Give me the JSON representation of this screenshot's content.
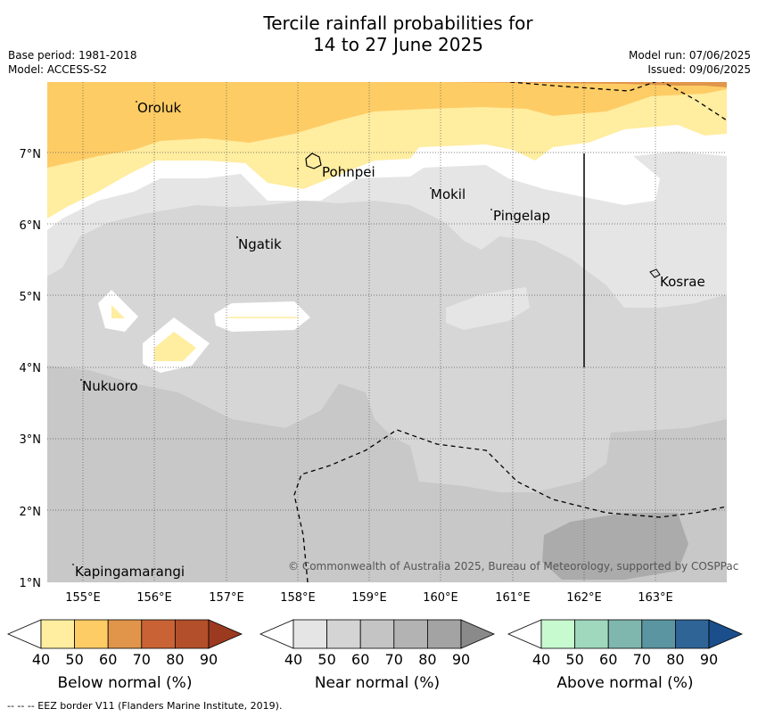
{
  "title_line1": "Tercile rainfall probabilities for",
  "title_line2": "14 to 27 June 2025",
  "meta_left": [
    "Base period: 1981-2018",
    "Model: ACCESS-S2"
  ],
  "meta_right": [
    "Model run: 07/06/2025",
    "Issued: 09/06/2025"
  ],
  "lat_labels": [
    "1°N",
    "2°N",
    "3°N",
    "4°N",
    "5°N",
    "6°N",
    "7°N"
  ],
  "lon_labels": [
    "155°E",
    "156°E",
    "157°E",
    "158°E",
    "159°E",
    "160°E",
    "161°E",
    "162°E",
    "163°E"
  ],
  "places": [
    "Oroluk",
    "Pohnpei",
    "Mokil",
    "Pingelap",
    "Ngatik",
    "Kosrae",
    "Nukuoro",
    "Kapingamarangi"
  ],
  "copyright": "© Commonwealth of Australia 2025, Bureau of Meteorology, supported by COSPPac",
  "legends": [
    {
      "title": "Below normal (%)",
      "ticks": [
        "40",
        "50",
        "60",
        "70",
        "80",
        "90"
      ],
      "colors": [
        "#ffffff",
        "#ffeda0",
        "#fecc65",
        "#e0954a",
        "#c96335",
        "#b34f2a",
        "#9c3a20"
      ]
    },
    {
      "title": "Near normal (%)",
      "ticks": [
        "40",
        "50",
        "60",
        "70",
        "80",
        "90"
      ],
      "colors": [
        "#ffffff",
        "#e5e5e5",
        "#d4d4d4",
        "#c4c4c4",
        "#b3b3b3",
        "#a3a3a3",
        "#8a8a8a"
      ]
    },
    {
      "title": "Above normal (%)",
      "ticks": [
        "40",
        "50",
        "60",
        "70",
        "80",
        "90"
      ],
      "colors": [
        "#ffffff",
        "#c8fad0",
        "#9fd8bd",
        "#7fb6ae",
        "#5a95a1",
        "#2f6496",
        "#1a4f8c"
      ]
    }
  ],
  "eez_note": "--  --  -- EEZ border V11 (Flanders Marine Institute, 2019)."
}
